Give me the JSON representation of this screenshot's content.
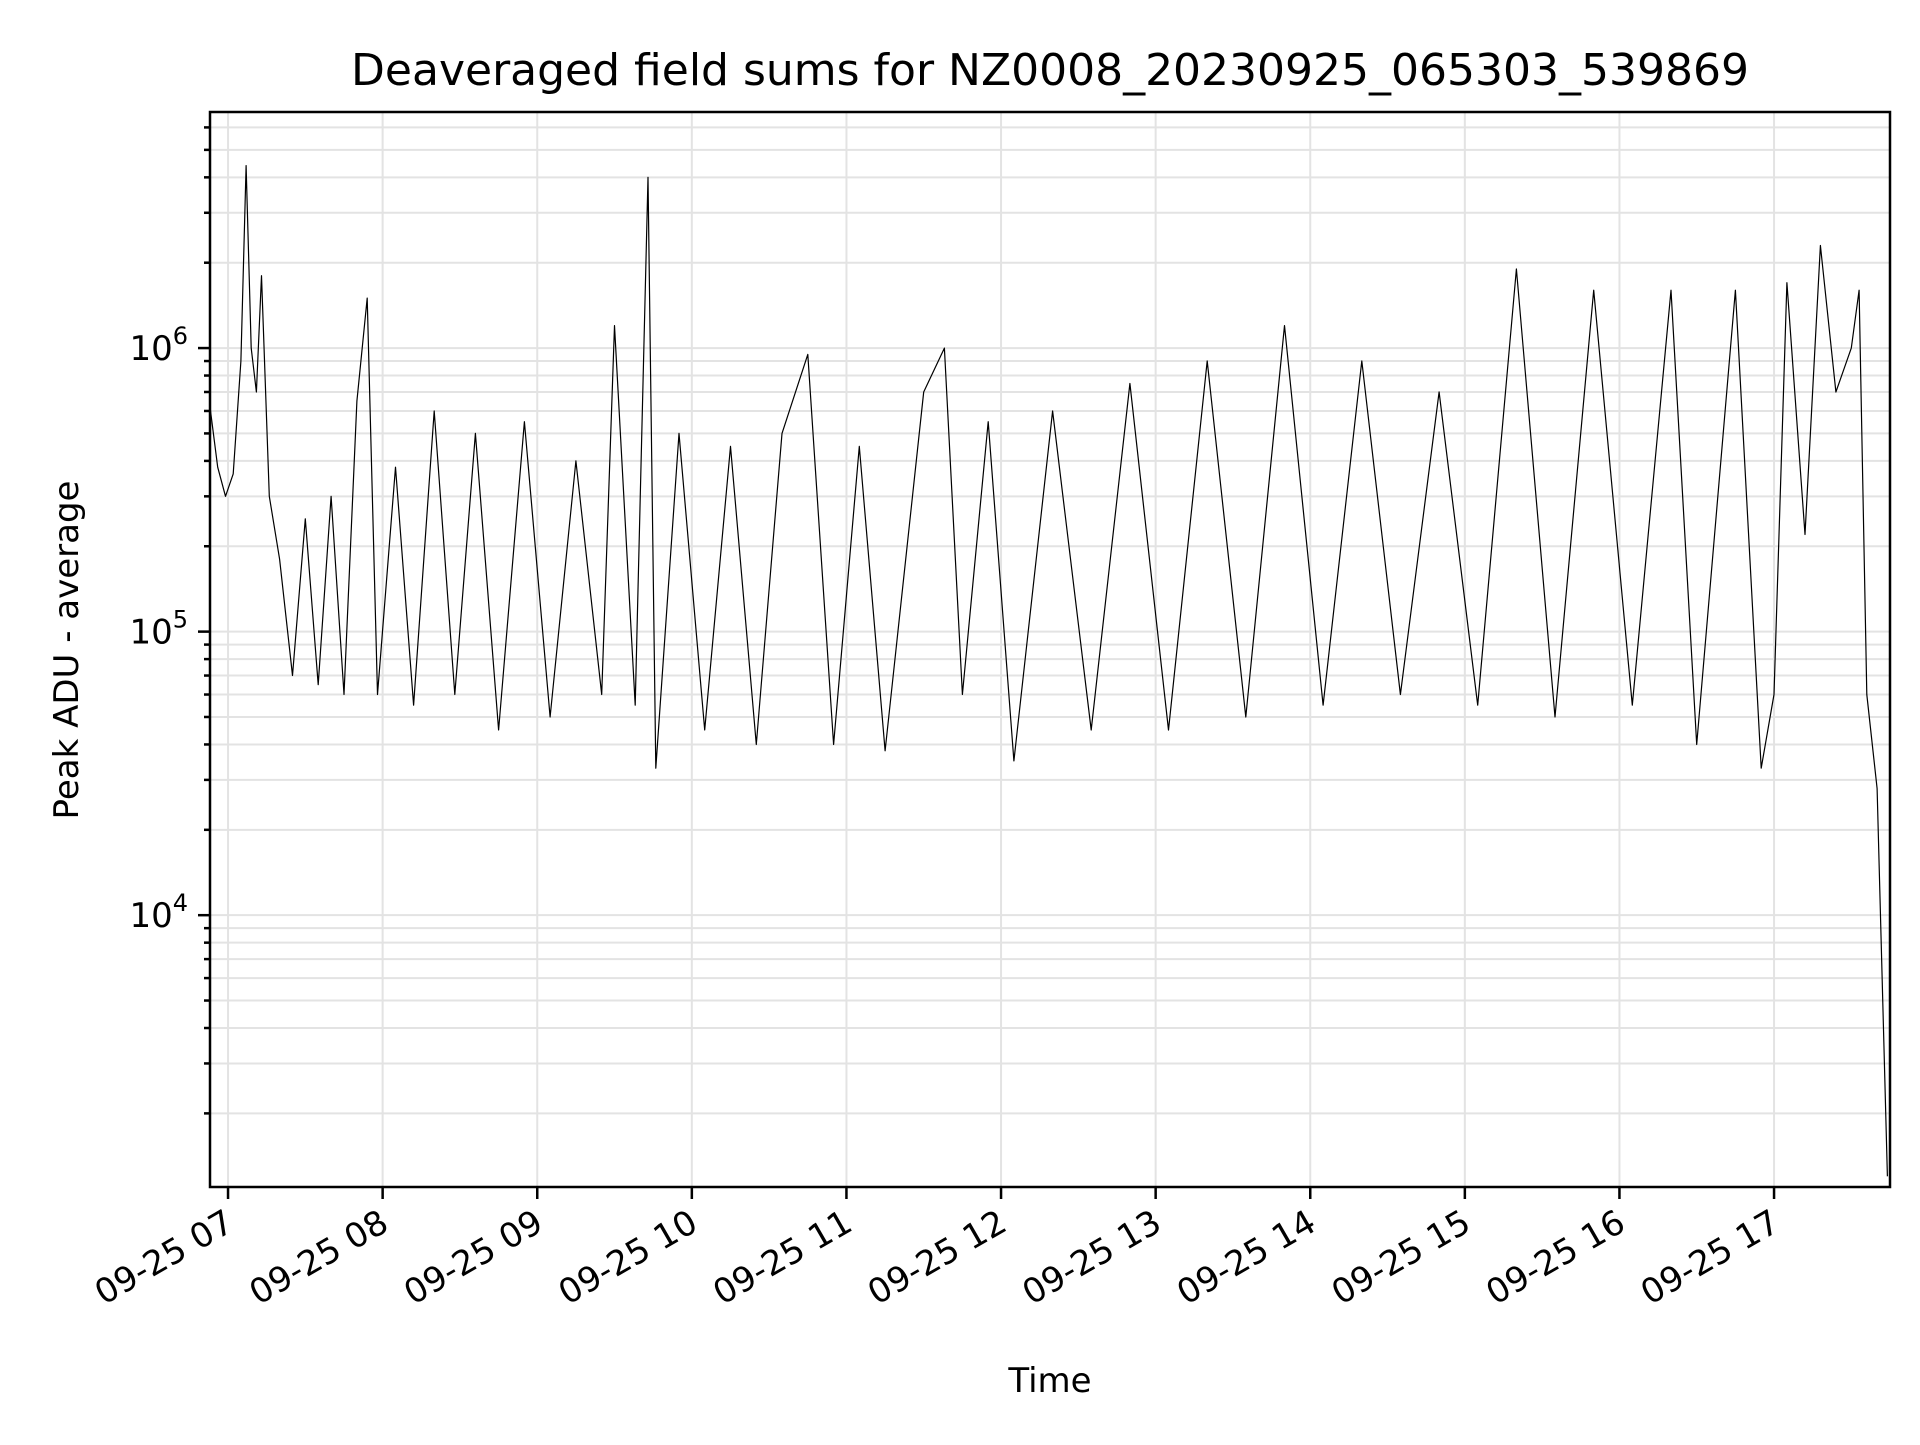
{
  "chart_data": {
    "type": "line",
    "title": "Deaveraged field sums for NZ0008_20230925_065303_539869",
    "xlabel": "Time",
    "ylabel": "Peak ADU - average",
    "y_scale": "log",
    "ylim": [
      1100,
      6800000
    ],
    "xlim": [
      "2023-09-25 06:53",
      "2023-09-25 17:45"
    ],
    "grid": true,
    "line_color": "#000000",
    "x_ticks": [
      "09-25 07",
      "09-25 08",
      "09-25 09",
      "09-25 10",
      "09-25 11",
      "09-25 12",
      "09-25 13",
      "09-25 14",
      "09-25 15",
      "09-25 16",
      "09-25 17"
    ],
    "y_ticks": [
      {
        "base": "10",
        "exp": "4",
        "value": 10000
      },
      {
        "base": "10",
        "exp": "5",
        "value": 100000
      },
      {
        "base": "10",
        "exp": "6",
        "value": 1000000
      }
    ],
    "series": [
      {
        "points": [
          [
            "2023-09-25 06:53",
            620000
          ],
          [
            "2023-09-25 06:56",
            380000
          ],
          [
            "2023-09-25 06:59",
            300000
          ],
          [
            "2023-09-25 07:02",
            360000
          ],
          [
            "2023-09-25 07:05",
            900000
          ],
          [
            "2023-09-25 07:07",
            4400000
          ],
          [
            "2023-09-25 07:09",
            1000000
          ],
          [
            "2023-09-25 07:11",
            700000
          ],
          [
            "2023-09-25 07:13",
            1800000
          ],
          [
            "2023-09-25 07:16",
            300000
          ],
          [
            "2023-09-25 07:20",
            180000
          ],
          [
            "2023-09-25 07:25",
            70000
          ],
          [
            "2023-09-25 07:30",
            250000
          ],
          [
            "2023-09-25 07:35",
            65000
          ],
          [
            "2023-09-25 07:40",
            300000
          ],
          [
            "2023-09-25 07:45",
            60000
          ],
          [
            "2023-09-25 07:50",
            650000
          ],
          [
            "2023-09-25 07:54",
            1500000
          ],
          [
            "2023-09-25 07:58",
            60000
          ],
          [
            "2023-09-25 08:05",
            380000
          ],
          [
            "2023-09-25 08:12",
            55000
          ],
          [
            "2023-09-25 08:20",
            600000
          ],
          [
            "2023-09-25 08:28",
            60000
          ],
          [
            "2023-09-25 08:36",
            500000
          ],
          [
            "2023-09-25 08:45",
            45000
          ],
          [
            "2023-09-25 08:55",
            550000
          ],
          [
            "2023-09-25 09:05",
            50000
          ],
          [
            "2023-09-25 09:15",
            400000
          ],
          [
            "2023-09-25 09:25",
            60000
          ],
          [
            "2023-09-25 09:30",
            1200000
          ],
          [
            "2023-09-25 09:38",
            55000
          ],
          [
            "2023-09-25 09:43",
            4000000
          ],
          [
            "2023-09-25 09:46",
            33000
          ],
          [
            "2023-09-25 09:55",
            500000
          ],
          [
            "2023-09-25 10:05",
            45000
          ],
          [
            "2023-09-25 10:15",
            450000
          ],
          [
            "2023-09-25 10:25",
            40000
          ],
          [
            "2023-09-25 10:35",
            500000
          ],
          [
            "2023-09-25 10:45",
            950000
          ],
          [
            "2023-09-25 10:55",
            40000
          ],
          [
            "2023-09-25 11:05",
            450000
          ],
          [
            "2023-09-25 11:15",
            38000
          ],
          [
            "2023-09-25 11:30",
            700000
          ],
          [
            "2023-09-25 11:38",
            1000000
          ],
          [
            "2023-09-25 11:45",
            60000
          ],
          [
            "2023-09-25 11:55",
            550000
          ],
          [
            "2023-09-25 12:05",
            35000
          ],
          [
            "2023-09-25 12:20",
            600000
          ],
          [
            "2023-09-25 12:35",
            45000
          ],
          [
            "2023-09-25 12:50",
            750000
          ],
          [
            "2023-09-25 13:05",
            45000
          ],
          [
            "2023-09-25 13:20",
            900000
          ],
          [
            "2023-09-25 13:35",
            50000
          ],
          [
            "2023-09-25 13:50",
            1200000
          ],
          [
            "2023-09-25 14:05",
            55000
          ],
          [
            "2023-09-25 14:20",
            900000
          ],
          [
            "2023-09-25 14:35",
            60000
          ],
          [
            "2023-09-25 14:50",
            700000
          ],
          [
            "2023-09-25 15:05",
            55000
          ],
          [
            "2023-09-25 15:20",
            1900000
          ],
          [
            "2023-09-25 15:35",
            50000
          ],
          [
            "2023-09-25 15:50",
            1600000
          ],
          [
            "2023-09-25 16:05",
            55000
          ],
          [
            "2023-09-25 16:20",
            1600000
          ],
          [
            "2023-09-25 16:30",
            40000
          ],
          [
            "2023-09-25 16:45",
            1600000
          ],
          [
            "2023-09-25 16:55",
            33000
          ],
          [
            "2023-09-25 17:00",
            60000
          ],
          [
            "2023-09-25 17:05",
            1700000
          ],
          [
            "2023-09-25 17:12",
            220000
          ],
          [
            "2023-09-25 17:18",
            2300000
          ],
          [
            "2023-09-25 17:24",
            700000
          ],
          [
            "2023-09-25 17:30",
            1000000
          ],
          [
            "2023-09-25 17:33",
            1600000
          ],
          [
            "2023-09-25 17:36",
            60000
          ],
          [
            "2023-09-25 17:40",
            28000
          ],
          [
            "2023-09-25 17:44",
            1200
          ]
        ]
      }
    ]
  }
}
